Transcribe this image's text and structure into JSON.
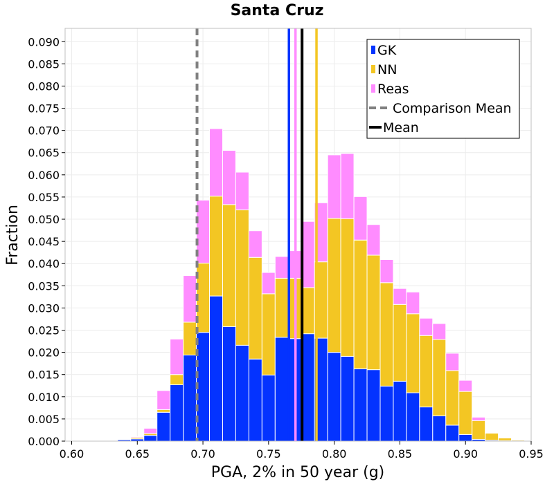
{
  "chart_data": {
    "type": "bar",
    "stacked": true,
    "title": "Santa Cruz",
    "xlabel": "PGA, 2% in 50 year (g)",
    "ylabel": "Fraction",
    "xlim": [
      0.595,
      0.95
    ],
    "ylim": [
      0.0,
      0.093
    ],
    "xticks": [
      "0.60",
      "0.65",
      "0.70",
      "0.75",
      "0.80",
      "0.85",
      "0.90",
      "0.95"
    ],
    "yticks": [
      "0.000",
      "0.005",
      "0.010",
      "0.015",
      "0.020",
      "0.025",
      "0.030",
      "0.035",
      "0.040",
      "0.045",
      "0.050",
      "0.055",
      "0.060",
      "0.065",
      "0.070",
      "0.075",
      "0.080",
      "0.085",
      "0.090"
    ],
    "grid": true,
    "legend_position": "top-right",
    "bin_width": 0.01,
    "bin_starts": [
      0.615,
      0.625,
      0.635,
      0.645,
      0.655,
      0.665,
      0.675,
      0.685,
      0.695,
      0.705,
      0.715,
      0.725,
      0.735,
      0.745,
      0.755,
      0.765,
      0.775,
      0.785,
      0.795,
      0.805,
      0.815,
      0.825,
      0.835,
      0.845,
      0.855,
      0.865,
      0.875,
      0.885,
      0.895,
      0.905,
      0.915,
      0.925,
      0.935
    ],
    "series": [
      {
        "name": "GK",
        "color": "#0433ff",
        "values": [
          0.0,
          0.0,
          0.0003,
          0.0005,
          0.0013,
          0.0065,
          0.0127,
          0.0194,
          0.0245,
          0.0327,
          0.0258,
          0.0216,
          0.0185,
          0.0149,
          0.0234,
          0.0231,
          0.0242,
          0.0232,
          0.02,
          0.0191,
          0.0163,
          0.0161,
          0.0124,
          0.0135,
          0.0109,
          0.0077,
          0.0057,
          0.0036,
          0.0015,
          0.0004,
          0.0002,
          0.0001,
          0.0
        ]
      },
      {
        "name": "NN",
        "color": "#f3c623",
        "values": [
          0.0,
          0.0,
          0.0,
          0.0003,
          0.0004,
          0.0006,
          0.0023,
          0.0074,
          0.0156,
          0.0225,
          0.0275,
          0.0305,
          0.0229,
          0.0183,
          0.0133,
          0.0136,
          0.0104,
          0.0172,
          0.0302,
          0.031,
          0.029,
          0.0258,
          0.0233,
          0.0173,
          0.0178,
          0.0161,
          0.0172,
          0.0123,
          0.0097,
          0.0042,
          0.0016,
          0.0006,
          0.0002
        ]
      },
      {
        "name": "Reas",
        "color": "#ff8cff",
        "values": [
          0.0,
          0.0,
          0.0,
          0.0002,
          0.0012,
          0.0043,
          0.008,
          0.0105,
          0.0142,
          0.0152,
          0.0122,
          0.0085,
          0.006,
          0.0048,
          0.0049,
          0.0062,
          0.0149,
          0.0133,
          0.0143,
          0.0147,
          0.0098,
          0.0069,
          0.0052,
          0.0036,
          0.0049,
          0.0039,
          0.0036,
          0.0039,
          0.0025,
          0.0008,
          0.0001,
          0.0,
          0.0
        ]
      }
    ],
    "mean_lines": [
      {
        "series": "GK",
        "x": 0.7655,
        "color": "#0433ff"
      },
      {
        "series": "Reas",
        "x": 0.7705,
        "color": "#ff8cff"
      },
      {
        "series": "NN",
        "x": 0.7865,
        "color": "#f3c623"
      }
    ],
    "overall_mean": 0.7755,
    "comparison_mean": 0.6955,
    "legend": [
      {
        "label": "GK",
        "kind": "patch",
        "color": "#0433ff"
      },
      {
        "label": "NN",
        "kind": "patch",
        "color": "#f3c623"
      },
      {
        "label": "Reas",
        "kind": "patch",
        "color": "#ff8cff"
      },
      {
        "label": "Comparison Mean",
        "kind": "dashed",
        "color": "#808080"
      },
      {
        "label": "Mean",
        "kind": "solid",
        "color": "#000000"
      }
    ]
  }
}
